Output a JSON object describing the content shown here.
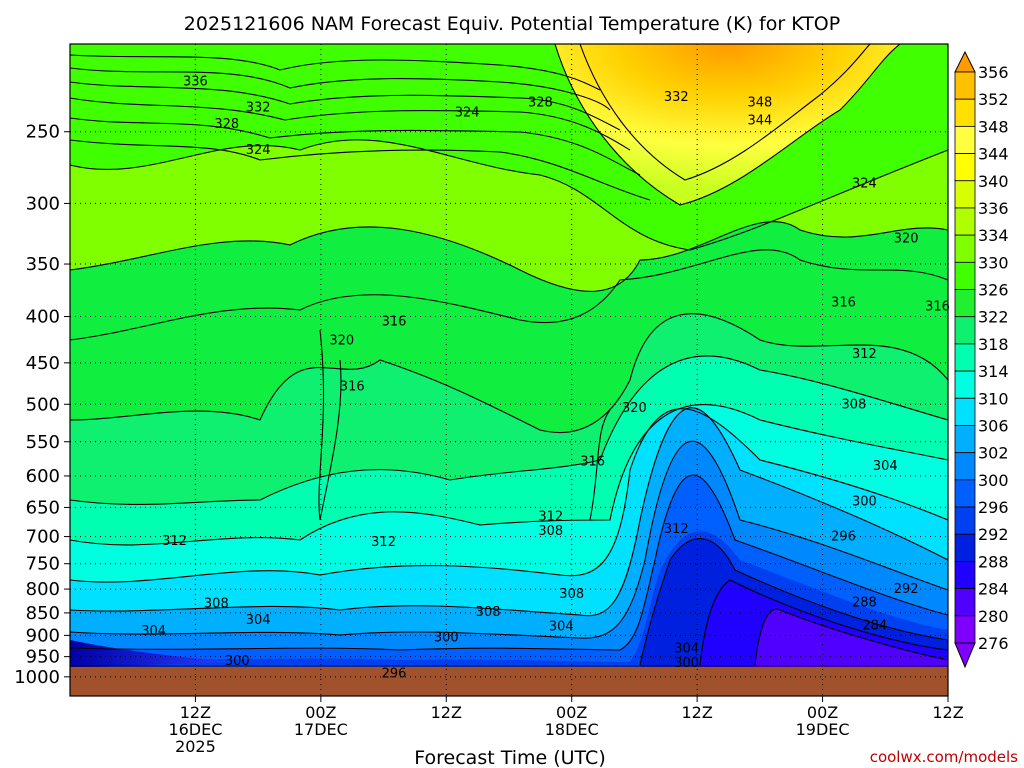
{
  "chart_data": {
    "type": "heatmap",
    "title": "2025121606 NAM Forecast Equiv. Potential Temperature (K) for KTOP",
    "xlabel": "Forecast Time (UTC)",
    "watermark": "coolwx.com/models",
    "y_axis": {
      "scale": "pressure (log, inverted)",
      "range_hpa": [
        1050,
        200
      ],
      "ticks": [
        250,
        300,
        350,
        400,
        450,
        500,
        550,
        600,
        650,
        700,
        750,
        800,
        850,
        900,
        950,
        1000
      ]
    },
    "x_axis": {
      "range_hours": [
        -12,
        72
      ],
      "ticks": [
        {
          "hour": 0,
          "line1": "12Z",
          "line2": "16DEC",
          "line3": "2025"
        },
        {
          "hour": 12,
          "line1": "00Z",
          "line2": "17DEC",
          "line3": ""
        },
        {
          "hour": 24,
          "line1": "12Z",
          "line2": "",
          "line3": ""
        },
        {
          "hour": 36,
          "line1": "00Z",
          "line2": "18DEC",
          "line3": ""
        },
        {
          "hour": 48,
          "line1": "12Z",
          "line2": "",
          "line3": ""
        },
        {
          "hour": 60,
          "line1": "00Z",
          "line2": "19DEC",
          "line3": ""
        },
        {
          "hour": 72,
          "line1": "12Z",
          "line2": "",
          "line3": ""
        }
      ]
    },
    "grid": "dotted",
    "colorbar": {
      "placement": "right",
      "levels": [
        356,
        352,
        348,
        344,
        340,
        336,
        334,
        330,
        326,
        322,
        318,
        314,
        310,
        306,
        302,
        300,
        296,
        292,
        288,
        284,
        280,
        276
      ],
      "colors": [
        "#ff9a00",
        "#ffc000",
        "#ffe000",
        "#ffff40",
        "#ffff00",
        "#d8ff00",
        "#b0ff00",
        "#80ff00",
        "#40ff00",
        "#20f030",
        "#10f070",
        "#00ffb0",
        "#00ffe0",
        "#00e0ff",
        "#00b0ff",
        "#0088ff",
        "#0060ff",
        "#0040f0",
        "#0020e0",
        "#2000ff",
        "#5000ff",
        "#8000ff"
      ]
    },
    "ground_color": "#a0522d",
    "contour_labels": [
      {
        "text": "336",
        "hour": 0,
        "hpa": 220
      },
      {
        "text": "332",
        "hour": 6,
        "hpa": 235
      },
      {
        "text": "328",
        "hour": 3,
        "hpa": 245
      },
      {
        "text": "324",
        "hour": 6,
        "hpa": 262
      },
      {
        "text": "324",
        "hour": 26,
        "hpa": 238
      },
      {
        "text": "328",
        "hour": 33,
        "hpa": 232
      },
      {
        "text": "332",
        "hour": 46,
        "hpa": 229
      },
      {
        "text": "348",
        "hour": 54,
        "hpa": 232
      },
      {
        "text": "344",
        "hour": 54,
        "hpa": 243
      },
      {
        "text": "324",
        "hour": 64,
        "hpa": 285
      },
      {
        "text": "320",
        "hour": 68,
        "hpa": 328
      },
      {
        "text": "316",
        "hour": 62,
        "hpa": 386
      },
      {
        "text": "316",
        "hour": 71,
        "hpa": 390
      },
      {
        "text": "312",
        "hour": 64,
        "hpa": 440
      },
      {
        "text": "308",
        "hour": 63,
        "hpa": 500
      },
      {
        "text": "304",
        "hour": 66,
        "hpa": 585
      },
      {
        "text": "300",
        "hour": 64,
        "hpa": 640
      },
      {
        "text": "296",
        "hour": 62,
        "hpa": 700
      },
      {
        "text": "292",
        "hour": 68,
        "hpa": 800
      },
      {
        "text": "288",
        "hour": 64,
        "hpa": 828
      },
      {
        "text": "284",
        "hour": 65,
        "hpa": 878
      },
      {
        "text": "320",
        "hour": 14,
        "hpa": 425
      },
      {
        "text": "316",
        "hour": 19,
        "hpa": 405
      },
      {
        "text": "316",
        "hour": 15,
        "hpa": 478
      },
      {
        "text": "320",
        "hour": 42,
        "hpa": 505
      },
      {
        "text": "316",
        "hour": 38,
        "hpa": 578
      },
      {
        "text": "312",
        "hour": 34,
        "hpa": 665
      },
      {
        "text": "312",
        "hour": 46,
        "hpa": 687
      },
      {
        "text": "308",
        "hour": 34,
        "hpa": 690
      },
      {
        "text": "312",
        "hour": -2,
        "hpa": 708
      },
      {
        "text": "312",
        "hour": 18,
        "hpa": 710
      },
      {
        "text": "308",
        "hour": 36,
        "hpa": 810
      },
      {
        "text": "308",
        "hour": 2,
        "hpa": 830
      },
      {
        "text": "308",
        "hour": 28,
        "hpa": 848
      },
      {
        "text": "304",
        "hour": 6,
        "hpa": 865
      },
      {
        "text": "304",
        "hour": -4,
        "hpa": 890
      },
      {
        "text": "304",
        "hour": 35,
        "hpa": 880
      },
      {
        "text": "300",
        "hour": 24,
        "hpa": 905
      },
      {
        "text": "304",
        "hour": 47,
        "hpa": 930
      },
      {
        "text": "300",
        "hour": 4,
        "hpa": 960
      },
      {
        "text": "300",
        "hour": 47,
        "hpa": 965
      },
      {
        "text": "296",
        "hour": 19,
        "hpa": 992
      }
    ]
  }
}
